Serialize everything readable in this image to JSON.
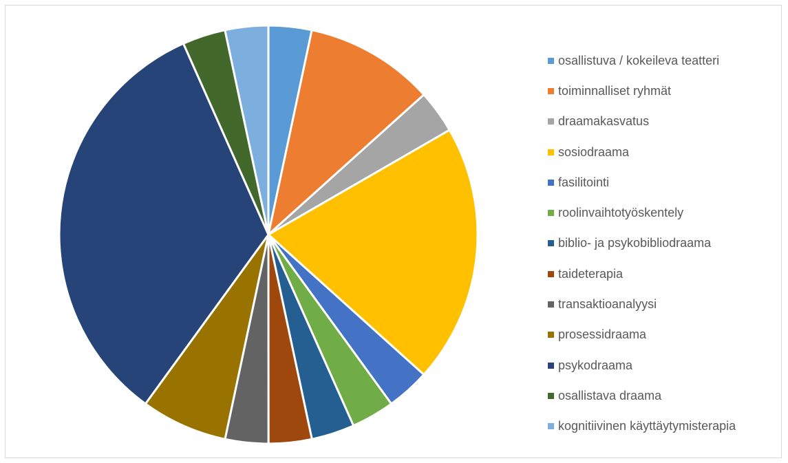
{
  "chart_data": {
    "type": "pie",
    "title": "",
    "start_angle_deg": 0,
    "direction": "clockwise",
    "legend_position": "right",
    "slices": [
      {
        "label": "osallistuva / kokeileva teatteri",
        "value": 3.33,
        "color": "#5B9BD5"
      },
      {
        "label": "toiminnalliset ryhmät",
        "value": 10.0,
        "color": "#ED7D31"
      },
      {
        "label": "draamakasvatus",
        "value": 3.33,
        "color": "#A5A5A5"
      },
      {
        "label": "sosiodraama",
        "value": 20.0,
        "color": "#FFC000"
      },
      {
        "label": "fasilitointi",
        "value": 3.33,
        "color": "#4472C4"
      },
      {
        "label": "roolinvaihtotyöskentely",
        "value": 3.33,
        "color": "#70AD47"
      },
      {
        "label": "biblio- ja psykobibliodraama",
        "value": 3.33,
        "color": "#255E91"
      },
      {
        "label": "taideterapia",
        "value": 3.33,
        "color": "#9E480E"
      },
      {
        "label": "transaktioanalyysi",
        "value": 3.33,
        "color": "#636363"
      },
      {
        "label": "prosessidraama",
        "value": 6.67,
        "color": "#997300"
      },
      {
        "label": "psykodraama",
        "value": 33.33,
        "color": "#264478"
      },
      {
        "label": "osallistava draama",
        "value": 3.33,
        "color": "#43682B"
      },
      {
        "label": "kognitiivinen käyttäytymisterapia",
        "value": 3.33,
        "color": "#7CAFDD"
      }
    ]
  }
}
